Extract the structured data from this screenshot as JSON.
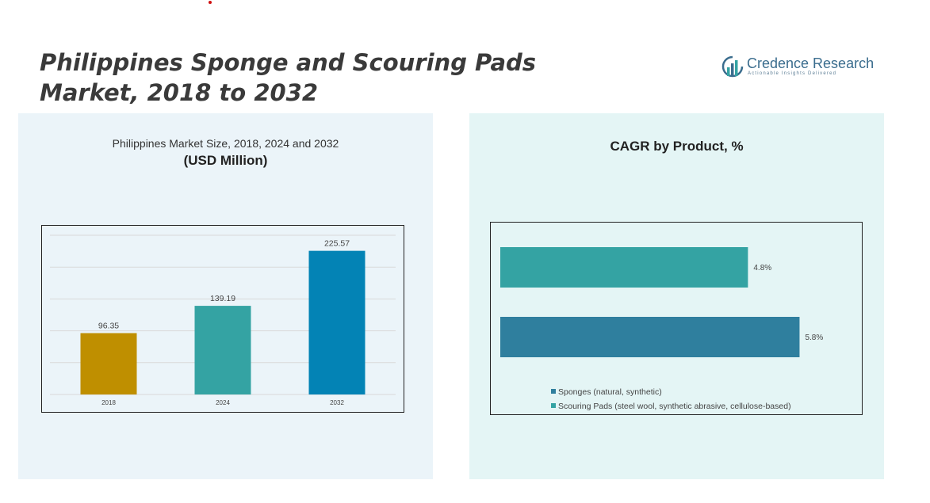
{
  "header": {
    "title": "Philippines Sponge and Scouring Pads Market, 2018 to 2032"
  },
  "logo": {
    "name": "Credence Research",
    "tagline": "Actionable Insights Delivered",
    "icon": "bar-chart-logo-icon"
  },
  "left_panel": {
    "title_line1": "Philippines Market Size, 2018, 2024 and 2032",
    "title_line2": "(USD Million)"
  },
  "right_panel": {
    "title": "CAGR by Product, %"
  },
  "chart_data": [
    {
      "type": "bar",
      "title": "Philippines Market Size, 2018, 2024 and 2032",
      "ylabel": "(USD Million)",
      "categories": [
        "2018",
        "2024",
        "2032"
      ],
      "values": [
        96.35,
        139.19,
        225.57
      ],
      "value_labels": [
        "96.35",
        "139.19",
        "225.57"
      ],
      "bar_colors": [
        "#bf8f00",
        "#34a3a3",
        "#0383b5"
      ],
      "ylim": [
        0,
        250
      ],
      "grid": true,
      "legend": "none"
    },
    {
      "type": "bar",
      "orientation": "horizontal",
      "title": "CAGR by Product, %",
      "categories": [
        "Sponges (natural, synthetic)",
        "Scouring Pads (steel wool, synthetic abrasive, cellulose-based)"
      ],
      "values": [
        4.8,
        5.8
      ],
      "value_labels": [
        "4.8%",
        "5.8%"
      ],
      "bar_colors": [
        "#34a3a3",
        "#2f7f9e"
      ],
      "legend_colors": [
        "#2f7f9e",
        "#34a3a3"
      ],
      "xlim": [
        0,
        6.3
      ],
      "grid": false,
      "legend": "bottom"
    }
  ]
}
